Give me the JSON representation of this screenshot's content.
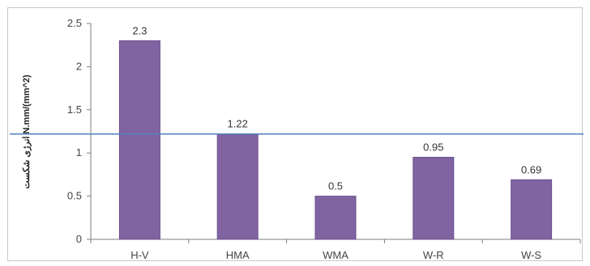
{
  "chart_data": {
    "type": "bar",
    "categories": [
      "H-V",
      "HMA",
      "WMA",
      "W-R",
      "W-S"
    ],
    "values": [
      2.3,
      1.22,
      0.5,
      0.95,
      0.69
    ],
    "data_labels": [
      "2.3",
      "1.22",
      "0.5",
      "0.95",
      "0.69"
    ],
    "ylabel": "انرژی شکست N.mm/(mm^2)",
    "ylim": [
      0,
      2.5
    ],
    "yticks": [
      "0",
      "0.5",
      "1",
      "1.5",
      "2",
      "2.5"
    ],
    "reference_line": 1.22,
    "grid": false,
    "colors": {
      "bar": "#8064a2",
      "bar_edge": "#6b4f8f",
      "reference_line": "#4f81bd",
      "axis": "#7f7f7f"
    }
  }
}
